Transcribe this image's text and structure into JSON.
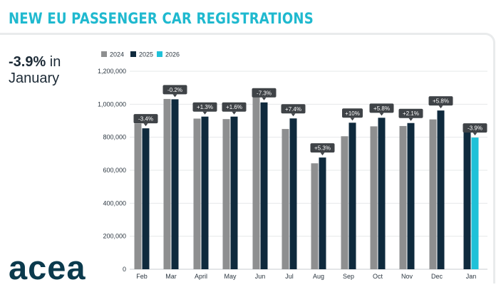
{
  "title": "NEW EU PASSENGER CAR REGISTRATIONS",
  "headline": {
    "value": "-3.9%",
    "suffix": " in",
    "line2": "January"
  },
  "logo": {
    "text": "acea"
  },
  "colors": {
    "y2024": "#8e8f90",
    "y2025": "#0f2a3d",
    "y2026": "#1fc1d8",
    "title": "#1fb9cf"
  },
  "chart_data": {
    "type": "bar",
    "title": "NEW EU PASSENGER CAR REGISTRATIONS",
    "xlabel": "",
    "ylabel": "",
    "ylim": [
      0,
      1200000
    ],
    "yticks": [
      0,
      200000,
      400000,
      600000,
      800000,
      1000000,
      1200000
    ],
    "ytick_labels": [
      "0",
      "200,000",
      "400,000",
      "600,000",
      "800,000",
      "1,000,000",
      "1,200,000"
    ],
    "legend": [
      "2024",
      "2025",
      "2026"
    ],
    "legend_position": "top-left",
    "categories": [
      "Feb",
      "Mar",
      "April",
      "May",
      "Jun",
      "Jul",
      "Aug",
      "Sep",
      "Oct",
      "Nov",
      "Dec",
      "Jan"
    ],
    "series": [
      {
        "name": "2024",
        "values": [
          883000,
          1032000,
          913000,
          910000,
          1090000,
          850000,
          642000,
          806000,
          866000,
          868000,
          908000,
          null
        ]
      },
      {
        "name": "2025",
        "values": [
          854000,
          1030000,
          925000,
          925000,
          1011000,
          914000,
          677000,
          888000,
          918000,
          886000,
          962000,
          830000
        ]
      },
      {
        "name": "2026",
        "values": [
          null,
          null,
          null,
          null,
          null,
          null,
          null,
          null,
          null,
          null,
          null,
          798000
        ]
      }
    ],
    "annotations": [
      "-3.4%",
      "-0.2%",
      "+1.3%",
      "+1.6%",
      "-7.3%",
      "+7.4%",
      "+5.3%",
      "+10%",
      "+5.8%",
      "+2.1%",
      "+5.8%",
      "-3.9%"
    ]
  }
}
